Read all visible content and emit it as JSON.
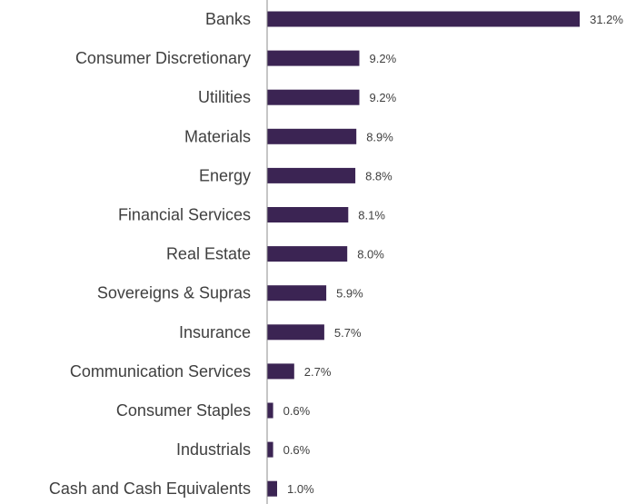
{
  "chart_data": {
    "type": "bar",
    "orientation": "horizontal",
    "title": "",
    "xlabel": "",
    "ylabel": "",
    "categories": [
      "Banks",
      "Consumer Discretionary",
      "Utilities",
      "Materials",
      "Energy",
      "Financial Services",
      "Real Estate",
      "Sovereigns & Supras",
      "Insurance",
      "Communication Services",
      "Consumer Staples",
      "Industrials",
      "Cash and Cash Equivalents"
    ],
    "values": [
      31.2,
      9.2,
      9.2,
      8.9,
      8.8,
      8.1,
      8.0,
      5.9,
      5.7,
      2.7,
      0.6,
      0.6,
      1.0
    ],
    "value_labels": [
      "31.2%",
      "9.2%",
      "9.2%",
      "8.9%",
      "8.8%",
      "8.1%",
      "8.0%",
      "5.9%",
      "5.7%",
      "2.7%",
      "0.6%",
      "0.6%",
      "1.0%"
    ],
    "unit": "%",
    "xlim": [
      0,
      35
    ],
    "grid": false,
    "legend": "none",
    "bar_color": "#3b2453",
    "axis_color": "#8c8c8c",
    "text_color": "#3f3f3f"
  }
}
